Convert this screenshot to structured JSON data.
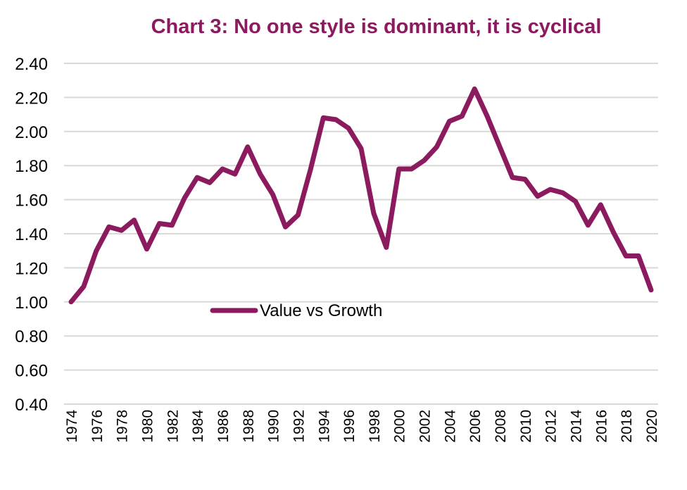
{
  "chart_data": {
    "type": "line",
    "title": "Chart 3: No one style is dominant, it is cyclical",
    "xlabel": "",
    "ylabel": "",
    "ylim": [
      0.4,
      2.4
    ],
    "yticks": [
      "0.40",
      "0.60",
      "0.80",
      "1.00",
      "1.20",
      "1.40",
      "1.60",
      "1.80",
      "2.00",
      "2.20",
      "2.40"
    ],
    "grid": true,
    "legend_position": "center-left",
    "x": [
      1974,
      1975,
      1976,
      1977,
      1978,
      1979,
      1980,
      1981,
      1982,
      1983,
      1984,
      1985,
      1986,
      1987,
      1988,
      1989,
      1990,
      1991,
      1992,
      1993,
      1994,
      1995,
      1996,
      1997,
      1998,
      1999,
      2000,
      2001,
      2002,
      2003,
      2004,
      2005,
      2006,
      2007,
      2008,
      2009,
      2010,
      2011,
      2012,
      2013,
      2014,
      2015,
      2016,
      2017,
      2018,
      2019,
      2020
    ],
    "xticks": [
      "1974",
      "1976",
      "1978",
      "1980",
      "1982",
      "1984",
      "1986",
      "1988",
      "1990",
      "1992",
      "1994",
      "1996",
      "1998",
      "2000",
      "2002",
      "2004",
      "2006",
      "2008",
      "2010",
      "2012",
      "2014",
      "2016",
      "2018",
      "2020"
    ],
    "series": [
      {
        "name": "Value  vs Growth",
        "color": "#8B1A5E",
        "values": [
          1.0,
          1.09,
          1.3,
          1.44,
          1.42,
          1.48,
          1.31,
          1.46,
          1.45,
          1.61,
          1.73,
          1.7,
          1.78,
          1.75,
          1.91,
          1.75,
          1.63,
          1.44,
          1.51,
          1.78,
          2.08,
          2.07,
          2.02,
          1.9,
          1.52,
          1.32,
          1.78,
          1.78,
          1.83,
          1.91,
          2.06,
          2.09,
          2.25,
          2.09,
          1.91,
          1.73,
          1.72,
          1.62,
          1.66,
          1.64,
          1.59,
          1.45,
          1.57,
          1.41,
          1.27,
          1.27,
          1.07
        ]
      }
    ]
  }
}
